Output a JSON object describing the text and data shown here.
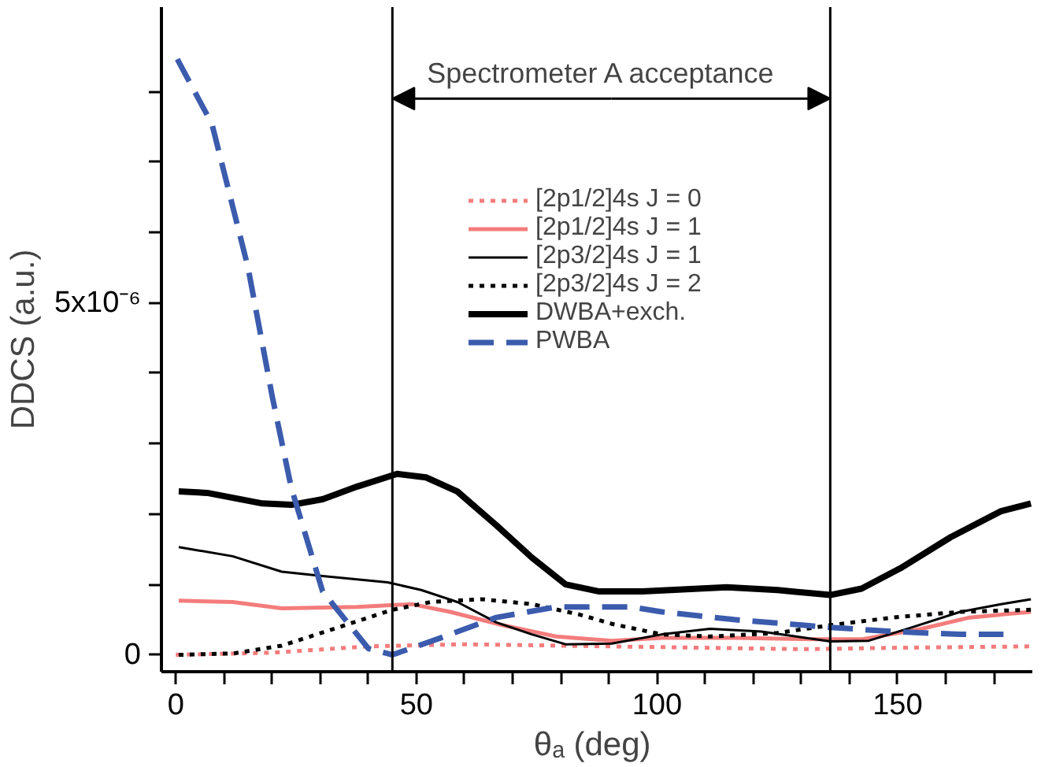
{
  "chart_data": {
    "type": "line",
    "xlabel": "θₐ  (deg)",
    "ylabel": "DDCS (a.u.)",
    "xlim": [
      -3,
      178
    ],
    "ylim": [
      -2.4e-07,
      9.2e-06
    ],
    "xticks": [
      0,
      {
        "value": 10,
        "label": null
      },
      {
        "value": 20,
        "label": null
      },
      {
        "value": 30,
        "label": null
      },
      {
        "value": 40,
        "label": null
      },
      50,
      {
        "value": 60,
        "label": null
      },
      {
        "value": 70,
        "label": null
      },
      {
        "value": 80,
        "label": null
      },
      {
        "value": 90,
        "label": null
      },
      100,
      {
        "value": 110,
        "label": null
      },
      {
        "value": 120,
        "label": null
      },
      {
        "value": 130,
        "label": null
      },
      {
        "value": 140,
        "label": null
      },
      150,
      {
        "value": 160,
        "label": null
      },
      {
        "value": 170,
        "label": null
      }
    ],
    "yticks": [
      0,
      {
        "value": 1e-06,
        "label": null
      },
      {
        "value": 2e-06,
        "label": null
      },
      {
        "value": 3e-06,
        "label": null
      },
      {
        "value": 4e-06,
        "label": null
      },
      {
        "value": 5e-06,
        "label": "5x10⁻⁶"
      },
      {
        "value": 6e-06,
        "label": null
      },
      {
        "value": 7e-06,
        "label": null
      },
      {
        "value": 8e-06,
        "label": null
      }
    ],
    "grid": false,
    "legend": "top right",
    "marker": "none",
    "series": [
      {
        "name": "[2p1/2]4s J = 0",
        "color": "#f47c7c",
        "line_style": "dotted",
        "x": [
          0,
          20,
          40,
          60,
          90,
          130,
          150,
          178
        ],
        "values": [
          0.0,
          3e-08,
          1.2e-07,
          1.5e-07,
          1.2e-07,
          8e-08,
          1e-07,
          1.2e-07
        ]
      },
      {
        "name": "[2p1/2]4s J = 1",
        "color": "#f47c7c",
        "line_style": "solid",
        "x": [
          0.6,
          11.8,
          22,
          37.7,
          49,
          57,
          68,
          79,
          90.6,
          101,
          116,
          134,
          142.5,
          155,
          165,
          177.7
        ],
        "values": [
          7.7e-07,
          7.5e-07,
          6.6e-07,
          6.8e-07,
          7.2e-07,
          6.1e-07,
          4.2e-07,
          2.6e-07,
          2e-07,
          2.4e-07,
          2.4e-07,
          2.2e-07,
          2.2e-07,
          3.7e-07,
          5.3e-07,
          6.1e-07
        ]
      },
      {
        "name": "[2p3/2]4s J = 1",
        "color": "#000000",
        "line_style": "solid",
        "x": [
          0.6,
          11.8,
          22,
          30.5,
          44,
          51,
          58.5,
          66.6,
          74,
          81,
          90.6,
          101,
          111,
          121.7,
          136,
          144,
          153,
          163,
          171.5,
          177.7
        ],
        "values": [
          1.53e-06,
          1.4e-06,
          1.18e-06,
          1.12e-06,
          1.03e-06,
          9.2e-07,
          7.5e-07,
          4.6e-07,
          2.9e-07,
          1.5e-07,
          1.6e-07,
          2.9e-07,
          3.7e-07,
          3.3e-07,
          1.9e-07,
          2e-07,
          3.9e-07,
          6.1e-07,
          7.2e-07,
          7.9e-07
        ]
      },
      {
        "name": "[2p3/2]4s J = 2",
        "color": "#000000",
        "line_style": "dotted",
        "x": [
          0.6,
          12,
          22,
          32,
          45,
          53,
          63.5,
          74,
          84,
          90.6,
          101,
          111,
          125,
          136,
          149,
          163,
          177.7
        ],
        "values": [
          0.0,
          2e-08,
          1.3e-07,
          3.5e-07,
          6.4e-07,
          7.5e-07,
          7.9e-07,
          7.2e-07,
          5.7e-07,
          4.4e-07,
          2.9e-07,
          2.6e-07,
          3.1e-07,
          4.2e-07,
          5.3e-07,
          6.1e-07,
          6.4e-07
        ]
      },
      {
        "name": "DWBA+exch.",
        "color": "#000000",
        "line_style": "solid",
        "x": [
          0.6,
          6.5,
          18,
          24,
          30.5,
          37.7,
          46,
          52,
          58.5,
          66.6,
          74,
          81,
          88,
          97,
          114.5,
          125,
          136,
          142.5,
          150.6,
          161,
          171.5,
          177.7
        ],
        "values": [
          2.32e-06,
          2.3e-06,
          2.15e-06,
          2.13e-06,
          2.21e-06,
          2.39e-06,
          2.57e-06,
          2.52e-06,
          2.32e-06,
          1.84e-06,
          1.38e-06,
          1e-06,
          9e-07,
          9e-07,
          9.6e-07,
          9.2e-07,
          8.5e-07,
          9.4e-07,
          1.23e-06,
          1.67e-06,
          2.04e-06,
          2.15e-06
        ]
      },
      {
        "name": "PWBA",
        "color": "#3b5bad",
        "line_style": "dashed",
        "x": [
          0.3,
          7.5,
          15,
          20,
          24,
          30.5,
          40,
          45,
          55,
          66.6,
          79,
          94.6,
          101,
          116,
          136,
          149,
          163,
          172
        ],
        "values": [
          8.46e-06,
          7.54e-06,
          5.5e-06,
          3.68e-06,
          2.37e-06,
          9e-07,
          9e-08,
          0.0,
          2.4e-07,
          5.3e-07,
          6.8e-07,
          6.8e-07,
          6.1e-07,
          5e-07,
          3.9e-07,
          3.3e-07,
          2.9e-07,
          2.9e-07
        ]
      }
    ],
    "ref_lines": [
      {
        "axis": "x",
        "value": 45,
        "color": "#000000"
      },
      {
        "axis": "x",
        "value": 136,
        "color": "#000000"
      }
    ],
    "annotations": [
      {
        "text": "Spectrometer A acceptance",
        "x": 45,
        "y": 7.9e-06
      }
    ]
  }
}
